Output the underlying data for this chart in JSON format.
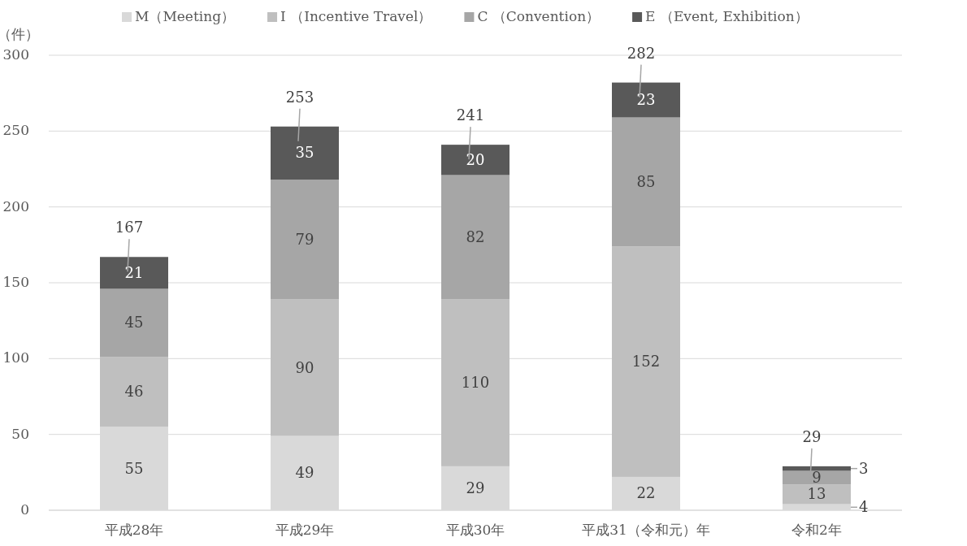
{
  "chart_data": {
    "type": "bar",
    "stacked": true,
    "ylabel": "（件）",
    "categories": [
      "平成28年",
      "平成29年",
      "平成30年",
      "平成31（令和元）年",
      "令和2年"
    ],
    "series": [
      {
        "name": "M（Meeting）",
        "color": "#d9d9d9",
        "values": [
          55,
          49,
          29,
          22,
          4
        ]
      },
      {
        "name": "I （Incentive Travel）",
        "color": "#bfbfbf",
        "values": [
          46,
          90,
          110,
          152,
          13
        ]
      },
      {
        "name": "C （Convention）",
        "color": "#a6a6a6",
        "values": [
          45,
          79,
          82,
          85,
          9
        ]
      },
      {
        "name": "E （Event, Exhibition）",
        "color": "#595959",
        "values": [
          21,
          35,
          20,
          23,
          3
        ]
      }
    ],
    "totals": [
      "167",
      "253",
      "241",
      "282",
      "29"
    ],
    "data_labels": true,
    "ylim": [
      0,
      300
    ],
    "yticks": [
      0,
      50,
      100,
      150,
      200,
      250,
      300
    ],
    "grid": "y",
    "legend": "top"
  }
}
